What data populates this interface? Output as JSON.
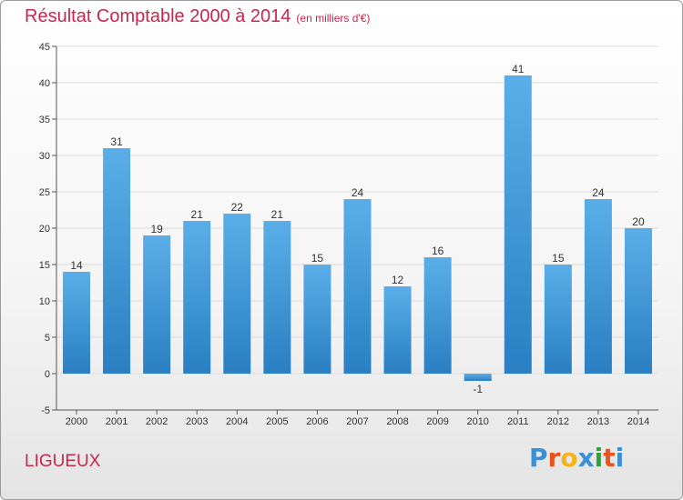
{
  "header": {
    "title": "Résultat Comptable 2000 à 2014",
    "subtitle": "(en milliers d'€)"
  },
  "footer": {
    "commune": "LIGUEUX",
    "logo_letters": [
      "P",
      "r",
      "o",
      "x",
      "i",
      "t",
      "i"
    ],
    "logo_colors": [
      "#3b8fd6",
      "#e8521c",
      "#f2b418",
      "#3b8fd6",
      "#2aa53a",
      "#e8521c",
      "#3b8fd6"
    ]
  },
  "colors": {
    "bar_top": "#5aaee8",
    "bar_bottom": "#2a7fc2",
    "title": "#c8264c",
    "grid": "#dddddd"
  },
  "chart_data": {
    "type": "bar",
    "categories": [
      "2000",
      "2001",
      "2002",
      "2003",
      "2004",
      "2005",
      "2006",
      "2007",
      "2008",
      "2009",
      "2010",
      "2011",
      "2012",
      "2013",
      "2014"
    ],
    "values": [
      14,
      31,
      19,
      21,
      22,
      21,
      15,
      24,
      12,
      16,
      -1,
      41,
      15,
      24,
      20
    ],
    "data_labels": [
      "14",
      "31",
      "19",
      "21",
      "22",
      "21",
      "15",
      "24",
      "12",
      "16",
      "-1",
      "41",
      "15",
      "24",
      "20"
    ],
    "ylim": [
      -5,
      45
    ],
    "yticks": [
      "-5",
      "0",
      "5",
      "10",
      "15",
      "20",
      "25",
      "30",
      "35",
      "40",
      "45"
    ],
    "grid": true
  }
}
